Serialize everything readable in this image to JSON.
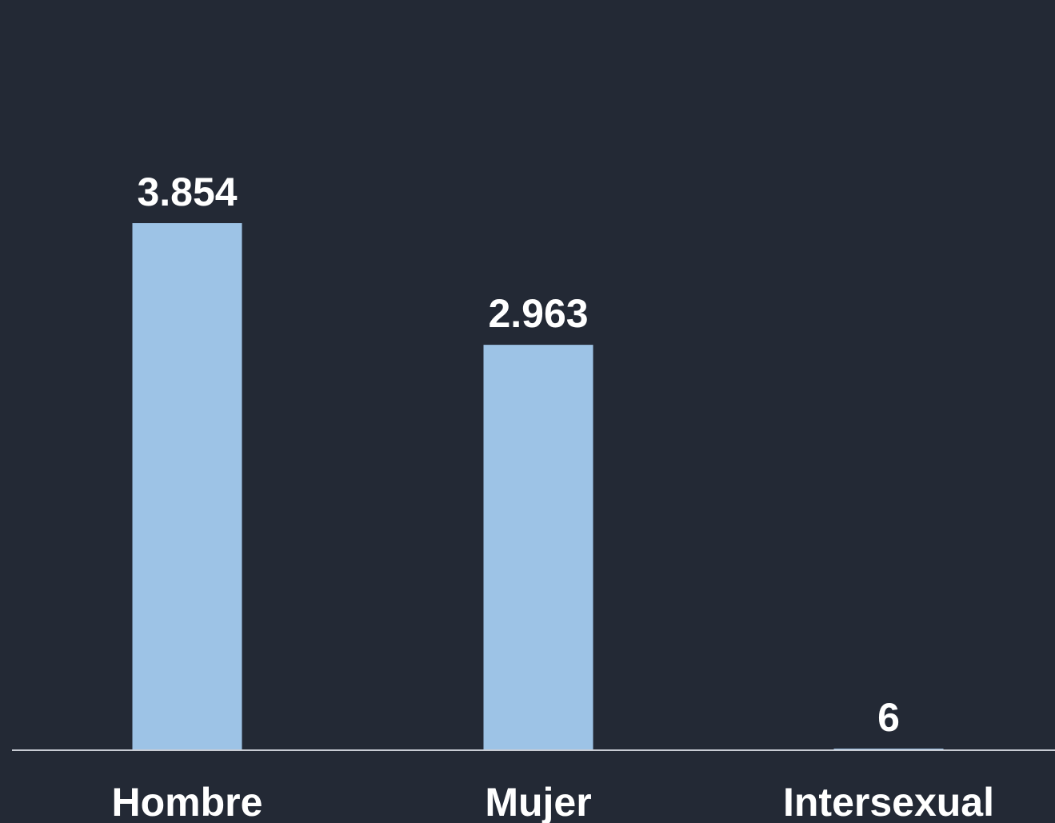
{
  "colors": {
    "background": "#232935",
    "bar": "#9dc3e6",
    "text": "#ffffff",
    "axis": "#c8ccd4"
  },
  "chart_data": {
    "type": "bar",
    "categories": [
      "Hombre",
      "Mujer",
      "Intersexual"
    ],
    "values": [
      3854,
      2963,
      6
    ],
    "value_labels": [
      "3.854",
      "2.963",
      "6"
    ],
    "title": "",
    "xlabel": "",
    "ylabel": "",
    "ylim": [
      0,
      3854
    ],
    "grid": false,
    "legend": "none"
  }
}
